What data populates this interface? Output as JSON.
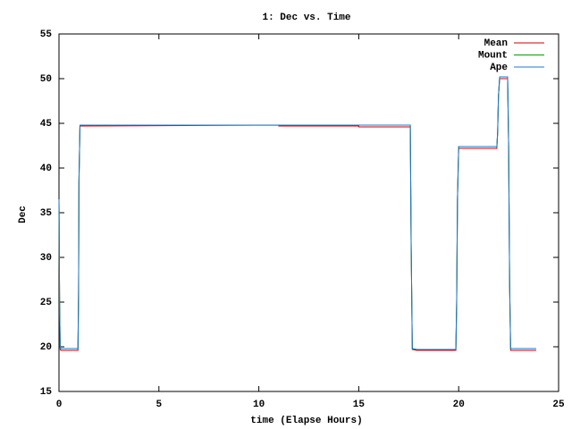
{
  "chart_data": {
    "type": "line",
    "title": "1: Dec vs. Time",
    "xlabel": "time (Elapse Hours)",
    "ylabel": "Dec",
    "x": [
      0,
      0.03,
      0.06,
      0.1,
      0.95,
      0.98,
      1.0,
      1.05,
      11.0,
      11.0,
      15.0,
      15.0,
      17.58,
      17.62,
      17.68,
      17.9,
      19.86,
      19.9,
      19.94,
      20.0,
      21.91,
      21.95,
      21.99,
      22.05,
      22.45,
      22.5,
      22.55,
      22.6,
      23.88
    ],
    "series": [
      {
        "name": "Mean",
        "color": "#cc0000",
        "values": [
          36.5,
          25,
          19.7,
          19.6,
          19.6,
          26,
          38.5,
          44.7,
          44.8,
          44.7,
          44.7,
          44.6,
          44.6,
          32,
          19.7,
          19.6,
          19.6,
          25,
          36.5,
          42.2,
          42.2,
          44,
          48,
          50.0,
          50.0,
          42.5,
          27,
          19.6,
          19.6
        ]
      },
      {
        "name": "Mount",
        "color": "#00a000",
        "values": [
          36.5,
          25,
          19.9,
          19.8,
          19.8,
          26,
          38.5,
          44.8,
          44.8,
          44.8,
          44.8,
          44.8,
          44.8,
          32,
          19.8,
          19.7,
          19.7,
          25,
          36.5,
          42.4,
          42.4,
          44,
          48,
          50.2,
          50.2,
          42.5,
          27,
          19.8,
          19.8
        ]
      },
      {
        "name": "Ape",
        "color": "#1f77d0",
        "values": [
          36.5,
          25,
          19.9,
          19.8,
          19.8,
          26,
          38.5,
          44.8,
          44.8,
          44.8,
          44.8,
          44.8,
          44.8,
          32,
          19.8,
          19.7,
          19.7,
          25,
          36.5,
          42.4,
          42.4,
          44,
          48,
          50.2,
          50.2,
          42.5,
          27,
          19.8,
          19.8
        ]
      }
    ],
    "xlim": [
      0,
      25
    ],
    "xticks": [
      0,
      5,
      10,
      15,
      20,
      25
    ],
    "ylim": [
      15,
      55
    ],
    "yticks": [
      15,
      20,
      25,
      30,
      35,
      40,
      45,
      50,
      55
    ],
    "legend": "upper-right"
  }
}
